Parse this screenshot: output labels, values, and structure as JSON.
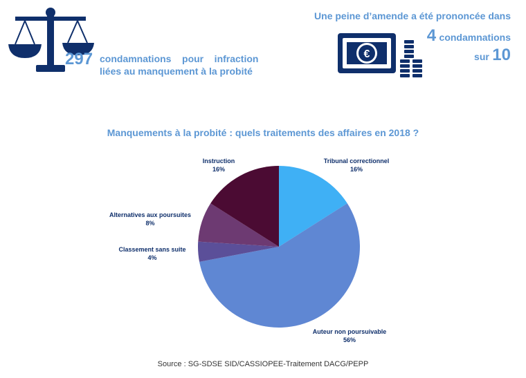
{
  "header_left": {
    "number": "297",
    "line1": "condamnations    pour    infraction",
    "line2": "liées au manquement à la probité"
  },
  "header_right": {
    "line1": "Une peine d’amende a été prononcée dans",
    "number": "4",
    "line2": "condamnations",
    "sur": "sur",
    "denominator": "10"
  },
  "icons": {
    "scales": "scales-of-justice-icon",
    "money": "euro-banknote-coins-icon"
  },
  "colors": {
    "accent_light_blue": "#5c97d4",
    "icon_navy": "#0f2f6b"
  },
  "chart_data": {
    "type": "pie",
    "title": "Manquements à la probité : quels traitements des affaires en 2018 ?",
    "slices": [
      {
        "label": "Tribunal correctionnel",
        "value": 16,
        "display": "16%",
        "color": "#3fb0f5"
      },
      {
        "label": "Auteur non poursuivable",
        "value": 56,
        "display": "56%",
        "color": "#5f87d3"
      },
      {
        "label": "Classement sans suite",
        "value": 4,
        "display": "4%",
        "color": "#5b4f99"
      },
      {
        "label": "Alternatives aux poursuites",
        "value": 8,
        "display": "8%",
        "color": "#6d3a72"
      },
      {
        "label": "Instruction",
        "value": 16,
        "display": "16%",
        "color": "#4b0b33"
      }
    ],
    "start_angle_deg": 0,
    "direction": "clockwise"
  },
  "source": "Source : SG-SDSE SID/CASSIOPEE-Traitement DACG/PEPP"
}
